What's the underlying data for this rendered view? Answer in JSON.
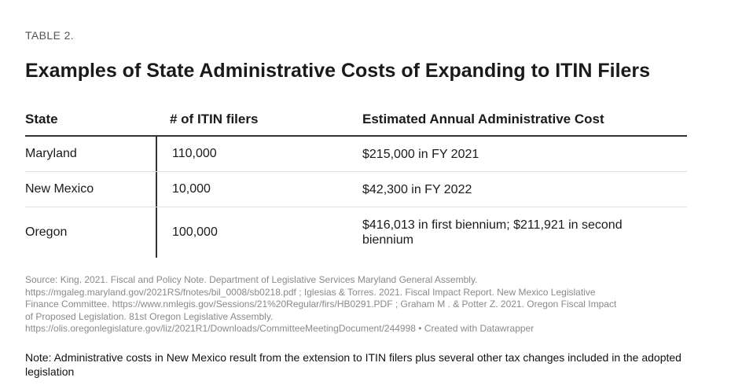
{
  "label": "TABLE 2.",
  "title": "Examples of State Administrative Costs of Expanding to ITIN Filers",
  "table": {
    "columns": [
      "State",
      "# of ITIN filers",
      "Estimated Annual Administrative Cost"
    ],
    "rows": [
      {
        "state": "Maryland",
        "filers": "110,000",
        "cost": "$215,000 in FY 2021"
      },
      {
        "state": "New Mexico",
        "filers": "10,000",
        "cost": "$42,300 in FY 2022"
      },
      {
        "state": "Oregon",
        "filers": "100,000",
        "cost": "$416,013 in first biennium; $211,921 in second biennium"
      }
    ]
  },
  "source": {
    "lines": [
      "Source: King. 2021. Fiscal and Policy Note. Department of Legislative Services Maryland General Assembly.",
      "https://mgaleg.maryland.gov/2021RS/fnotes/bil_0008/sb0218.pdf ; Iglesias & Torres. 2021. Fiscal Impact Report. New Mexico Legislative",
      "Finance Committee. https://www.nmlegis.gov/Sessions/21%20Regular/firs/HB0291.PDF ; Graham M . & Potter Z. 2021. Oregon Fiscal Impact",
      "of Proposed Legislation. 81st Oregon Legislative Assembly.",
      "https://olis.oregonlegislature.gov/liz/2021R1/Downloads/CommitteeMeetingDocument/244998 • Created with Datawrapper"
    ]
  },
  "note": "Note: Administrative costs in New Mexico result from the extension to ITIN filers plus several other tax changes included in the adopted legislation"
}
